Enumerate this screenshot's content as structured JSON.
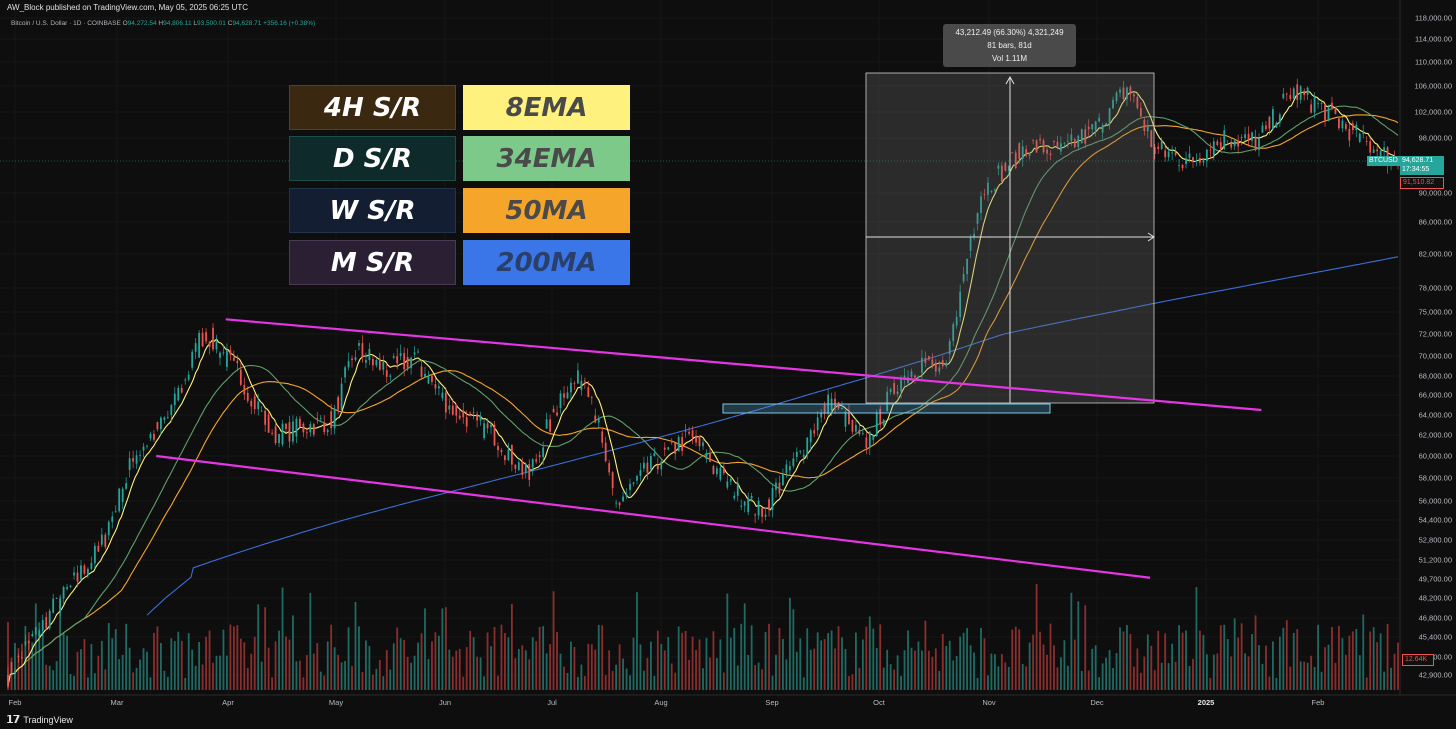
{
  "header": {
    "publisher": "AW_Block published on TradingView.com, May 05, 2025 06:25 UTC",
    "symbol": "Bitcoin / U.S. Dollar · 1D · COINBASE",
    "ohlc": {
      "o_label": "O",
      "o": "94,272.54",
      "h_label": "H",
      "h": "94,806.11",
      "l_label": "L",
      "l": "93,500.01",
      "c_label": "C",
      "c": "94,628.71",
      "change": "+356.16 (+0.38%)"
    }
  },
  "legend": {
    "rows": [
      {
        "left": "4H S/R",
        "right": "8EMA"
      },
      {
        "left": "D S/R",
        "right": "34EMA"
      },
      {
        "left": "W S/R",
        "right": "50MA"
      },
      {
        "left": "M S/R",
        "right": "200MA"
      }
    ],
    "left_colors": {
      "bg": [
        "#3a2810",
        "#0f2a2a",
        "#141e33",
        "#2a1f33"
      ],
      "border": [
        "#5e4018",
        "#1e4d48",
        "#22334d",
        "#4a3a55"
      ]
    },
    "right_colors": [
      "#fef17e",
      "#7cc98a",
      "#f5a52a",
      "#3b76e8"
    ],
    "right_text_colors": [
      "#4a4a4a",
      "#4a4a4a",
      "#4a4a4a",
      "#2a3f6a"
    ],
    "left_text_color": "#ffffff"
  },
  "measure": {
    "line1": "43,212.49 (66.30%) 4,321,249",
    "line2": "81 bars, 81d",
    "line3": "Vol 1.11M"
  },
  "price_axis": {
    "ticks": [
      "118,000.00",
      "114,000.00",
      "110,000.00",
      "106,000.00",
      "102,000.00",
      "98,000.00",
      "90,000.00",
      "86,000.00",
      "82,000.00",
      "78,000.00",
      "75,000.00",
      "72,000.00",
      "70,000.00",
      "68,000.00",
      "66,000.00",
      "64,000.00",
      "62,000.00",
      "60,000.00",
      "58,000.00",
      "56,000.00",
      "54,400.00",
      "52,800.00",
      "51,200.00",
      "49,700.00",
      "48,200.00",
      "46,800.00",
      "45,400.00",
      "44,100.00",
      "42,900.00"
    ],
    "current_symbol": "BTCUSD",
    "current_price": "94,628.71",
    "countdown": "17:34:55",
    "red_price": "91,510.82",
    "volume_tag": "12.64K"
  },
  "time_axis": {
    "months": [
      "Feb",
      "Mar",
      "Apr",
      "May",
      "Jun",
      "Jul",
      "Aug",
      "Sep",
      "Oct",
      "Nov",
      "Dec",
      "2025",
      "Feb"
    ]
  },
  "footer": {
    "brand": "TradingView"
  },
  "chart_data": {
    "type": "candlestick",
    "title": "Bitcoin / U.S. Dollar · 1D · COINBASE",
    "price_anchors": [
      {
        "t": 0,
        "p": 42900
      },
      {
        "t": 40,
        "p": 52000
      },
      {
        "t": 55,
        "p": 60000
      },
      {
        "t": 70,
        "p": 64000
      },
      {
        "t": 85,
        "p": 72500
      },
      {
        "t": 100,
        "p": 68000
      },
      {
        "t": 115,
        "p": 62000
      },
      {
        "t": 140,
        "p": 63500
      },
      {
        "t": 150,
        "p": 70500
      },
      {
        "t": 165,
        "p": 68500
      },
      {
        "t": 175,
        "p": 70000
      },
      {
        "t": 190,
        "p": 65000
      },
      {
        "t": 210,
        "p": 62000
      },
      {
        "t": 225,
        "p": 58000
      },
      {
        "t": 240,
        "p": 66500
      },
      {
        "t": 250,
        "p": 68000
      },
      {
        "t": 262,
        "p": 55500
      },
      {
        "t": 280,
        "p": 59500
      },
      {
        "t": 295,
        "p": 62000
      },
      {
        "t": 310,
        "p": 57500
      },
      {
        "t": 325,
        "p": 55000
      },
      {
        "t": 340,
        "p": 59500
      },
      {
        "t": 355,
        "p": 65500
      },
      {
        "t": 370,
        "p": 61000
      },
      {
        "t": 385,
        "p": 67500
      },
      {
        "t": 395,
        "p": 69500
      },
      {
        "t": 405,
        "p": 68200
      },
      {
        "t": 420,
        "p": 90000
      },
      {
        "t": 440,
        "p": 97000
      },
      {
        "t": 455,
        "p": 96000
      },
      {
        "t": 470,
        "p": 99500
      },
      {
        "t": 484,
        "p": 106000
      },
      {
        "t": 495,
        "p": 96500
      },
      {
        "t": 510,
        "p": 94500
      },
      {
        "t": 525,
        "p": 98000
      },
      {
        "t": 540,
        "p": 97500
      },
      {
        "t": 555,
        "p": 105500
      },
      {
        "t": 570,
        "p": 102000
      },
      {
        "t": 585,
        "p": 97500
      },
      {
        "t": 600,
        "p": 94500
      }
    ],
    "trendlines": [
      {
        "name": "upper",
        "color": "#e535e5",
        "from": {
          "t": 94,
          "p": 74000
        },
        "to": {
          "t": 541,
          "p": 64500
        }
      },
      {
        "name": "lower",
        "color": "#e535e5",
        "from": {
          "t": 64,
          "p": 60000
        },
        "to": {
          "t": 493,
          "p": 49800
        }
      }
    ],
    "measure_range": {
      "from": 43212.49,
      "pct": 66.3,
      "bars": 81
    }
  }
}
